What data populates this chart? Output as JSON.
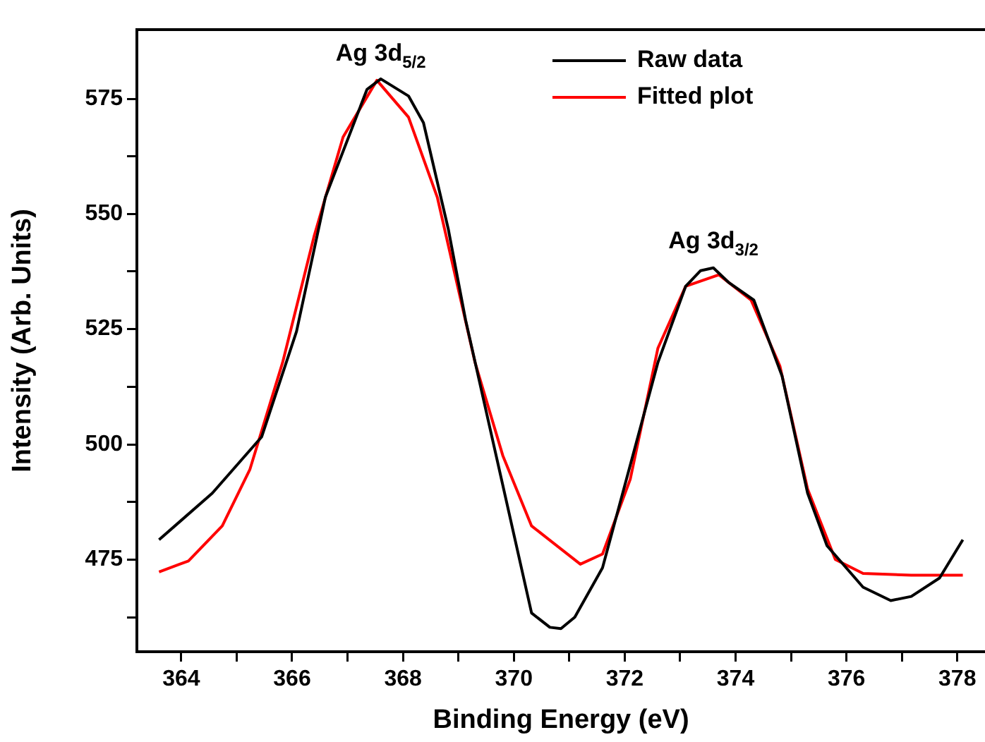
{
  "chart_data": {
    "type": "line",
    "xlabel": "Binding Energy (eV)",
    "ylabel": "Intensity (Arb. Units)",
    "xlim": [
      363.2,
      378.5
    ],
    "ylim": [
      455,
      590
    ],
    "xticks": [
      364,
      {
        "value": 365,
        "label": null
      },
      366,
      {
        "value": 367,
        "label": null
      },
      368,
      {
        "value": 369,
        "label": null
      },
      370,
      {
        "value": 371,
        "label": null
      },
      372,
      {
        "value": 373,
        "label": null
      },
      374,
      {
        "value": 375,
        "label": null
      },
      376,
      {
        "value": 377,
        "label": null
      },
      378
    ],
    "yticks": [
      {
        "value": 462.5,
        "label": null
      },
      475,
      {
        "value": 487.5,
        "label": null
      },
      500,
      {
        "value": 512.5,
        "label": null
      },
      525,
      {
        "value": 537.5,
        "label": null
      },
      550,
      {
        "value": 562.5,
        "label": null
      },
      575
    ],
    "grid": false,
    "legend": "top right",
    "marker": "none",
    "line_style": "solid",
    "series": [
      {
        "name": "Raw data",
        "color": "#000000",
        "x": [
          363.6,
          364.56,
          365.45,
          366.08,
          366.6,
          367.35,
          367.6,
          368.1,
          368.37,
          368.82,
          369.13,
          370.32,
          370.65,
          370.85,
          371.1,
          371.6,
          372.1,
          372.6,
          373.1,
          373.37,
          373.6,
          373.87,
          374.33,
          374.84,
          375.3,
          375.65,
          376.3,
          376.8,
          377.17,
          377.68,
          378.1
        ],
        "values": [
          479.3,
          489.4,
          501.6,
          524.5,
          553.6,
          577,
          579.3,
          575.6,
          569.8,
          546.6,
          527,
          463.4,
          460.3,
          460,
          462.5,
          473.2,
          495.5,
          517.8,
          534.3,
          537.7,
          538.3,
          535.2,
          531.3,
          514.8,
          489.4,
          478,
          469,
          466.1,
          467,
          471,
          479.3
        ]
      },
      {
        "name": "Fitted plot",
        "color": "#ff0000",
        "x": [
          363.6,
          364.13,
          364.74,
          365.24,
          365.83,
          366.4,
          366.92,
          367.53,
          368.1,
          368.62,
          369.3,
          369.8,
          370.32,
          371.2,
          371.6,
          372.1,
          372.6,
          373.1,
          373.7,
          374.28,
          374.8,
          375.3,
          375.8,
          376.3,
          377.17,
          378.1
        ],
        "values": [
          472.3,
          474.7,
          482.3,
          494.6,
          517.8,
          545.3,
          566.7,
          579,
          571,
          553.6,
          517.8,
          497.6,
          482.3,
          474,
          476.2,
          492.4,
          520.9,
          534.3,
          536.8,
          531.3,
          517,
          490.3,
          475,
          472,
          471.6,
          471.6
        ]
      }
    ],
    "annotations": [
      {
        "text": "Ag 3d$_{5/2}$",
        "x": 367.6,
        "y": 579
      },
      {
        "text": "Ag 3d$_{3/2}$",
        "x": 373.6,
        "y": 538.3
      }
    ]
  }
}
